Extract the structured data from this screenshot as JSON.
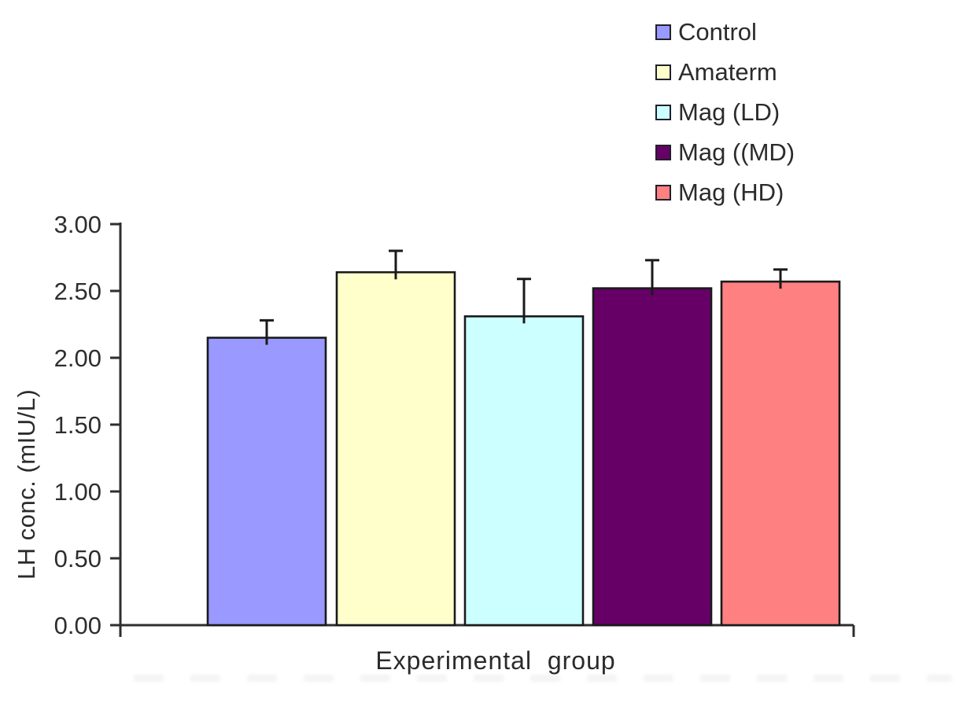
{
  "chart_data": {
    "type": "bar",
    "title": "",
    "xlabel": "Experimental  group",
    "ylabel": "LH conc. (mIU/L)",
    "categories": [
      "Control",
      "Amaterm",
      "Mag (LD)",
      "Mag ((MD)",
      "Mag (HD)"
    ],
    "values": [
      2.15,
      2.64,
      2.31,
      2.52,
      2.57
    ],
    "errors": [
      0.13,
      0.16,
      0.28,
      0.21,
      0.09
    ],
    "bar_colors": [
      "#9999FF",
      "#FFFFCC",
      "#CCFFFF",
      "#660066",
      "#FF8080"
    ],
    "bar_border_color": "#1a1a1a",
    "axis_color": "#2e2e2e",
    "error_bar_color": "#1a1a1a",
    "ylim": [
      0,
      3
    ],
    "ytick_step": 0.5,
    "ytick_labels": [
      "0.00",
      "0.50",
      "1.00",
      "1.50",
      "2.00",
      "2.50",
      "3.00"
    ],
    "grid": false,
    "legend_position": "top-right"
  }
}
